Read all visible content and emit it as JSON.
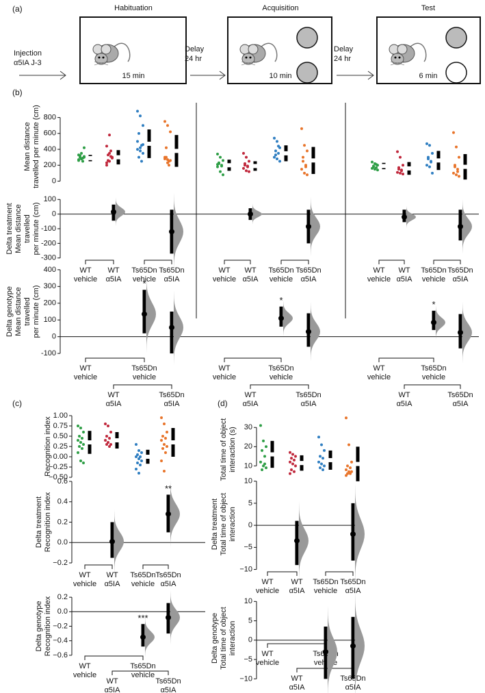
{
  "schematic": {
    "label": "(a)",
    "injection": [
      "Injection",
      "α5IA J-3"
    ],
    "phases": [
      {
        "title": "Habituation",
        "duration": "15 min"
      },
      {
        "title": "Acquisition",
        "duration": "10 min"
      },
      {
        "title": "Test",
        "duration": "6 min"
      }
    ],
    "delays": [
      [
        "Delay",
        "24 hr"
      ],
      [
        "Delay",
        "24 hr"
      ]
    ]
  },
  "chart_data": [
    {
      "type": "strip",
      "label": "(b)",
      "ylabel": [
        "Mean distance",
        "travelled per minute (cm)"
      ],
      "ylim": [
        -30,
        900
      ],
      "yticks": [
        0,
        200,
        400,
        600,
        800
      ],
      "groups": [
        {
          "series": [
            {
              "color": "#2e9e46",
              "values": [
                260,
                280,
                300,
                320,
                290,
                270,
                350,
                420,
                300,
                250,
                330,
                280,
                310
              ],
              "mean": 290,
              "sd": 40
            },
            {
              "color": "#c0283c",
              "values": [
                200,
                250,
                300,
                330,
                380,
                440,
                580,
                290,
                260,
                310,
                230,
                350
              ],
              "mean": 300,
              "sd": 90
            },
            {
              "color": "#2f7ec1",
              "values": [
                880,
                820,
                700,
                600,
                450,
                400,
                380,
                350,
                300,
                250,
                500,
                420,
                460
              ],
              "mean": 470,
              "sd": 180
            },
            {
              "color": "#e8742a",
              "values": [
                750,
                700,
                620,
                300,
                250,
                280,
                230,
                260,
                420,
                200,
                300,
                270
              ],
              "mean": 380,
              "sd": 200
            }
          ]
        },
        {
          "series": [
            {
              "color": "#2e9e46",
              "values": [
                340,
                300,
                260,
                220,
                200,
                180,
                120,
                80,
                230,
                190,
                210
              ],
              "mean": 200,
              "sd": 70
            },
            {
              "color": "#c0283c",
              "values": [
                350,
                300,
                250,
                200,
                180,
                160,
                130,
                120,
                220,
                190
              ],
              "mean": 190,
              "sd": 60
            },
            {
              "color": "#2f7ec1",
              "values": [
                540,
                500,
                420,
                380,
                350,
                300,
                280,
                250,
                330,
                440
              ],
              "mean": 350,
              "sd": 100
            },
            {
              "color": "#e8742a",
              "values": [
                660,
                450,
                380,
                300,
                200,
                150,
                100,
                80,
                250,
                180
              ],
              "mean": 260,
              "sd": 170
            }
          ]
        },
        {
          "series": [
            {
              "color": "#2e9e46",
              "values": [
                240,
                220,
                200,
                180,
                170,
                160,
                150,
                140,
                190,
                210
              ],
              "mean": 190,
              "sd": 40
            },
            {
              "color": "#c0283c",
              "values": [
                370,
                300,
                200,
                150,
                130,
                110,
                100,
                90,
                170,
                140
              ],
              "mean": 160,
              "sd": 80
            },
            {
              "color": "#2f7ec1",
              "values": [
                470,
                450,
                350,
                300,
                240,
                200,
                180,
                100,
                280,
                250
              ],
              "mean": 260,
              "sd": 120
            },
            {
              "color": "#e8742a",
              "values": [
                610,
                430,
                300,
                200,
                150,
                100,
                80,
                60,
                180,
                120
              ],
              "mean": 180,
              "sd": 160
            }
          ]
        }
      ]
    },
    {
      "type": "delta",
      "layout": "treatment",
      "ylabel": [
        "Delta treatment",
        "Mean distance",
        "travelled",
        "per minute (cm)"
      ],
      "ylim": [
        -320,
        120
      ],
      "yticks": [
        100,
        0,
        -100,
        -200,
        -300
      ],
      "groups": [
        {
          "categories": [
            [
              "WT",
              "vehicle"
            ],
            [
              "WT",
              "α5IA"
            ],
            [
              "Ts65Dn",
              "vehicle"
            ],
            [
              "Ts65Dn",
              "α5IA"
            ]
          ],
          "values": [
            null,
            15,
            null,
            -120
          ],
          "ci_low": [
            null,
            -45,
            null,
            -270
          ],
          "ci_high": [
            null,
            65,
            null,
            30
          ]
        },
        {
          "categories": [
            [
              "WT",
              "vehicle"
            ],
            [
              "WT",
              "α5IA"
            ],
            [
              "Ts65Dn",
              "vehicle"
            ],
            [
              "Ts65Dn",
              "α5IA"
            ]
          ],
          "values": [
            null,
            0,
            null,
            -85
          ],
          "ci_low": [
            null,
            -40,
            null,
            -200
          ],
          "ci_high": [
            null,
            40,
            null,
            30
          ]
        },
        {
          "categories": [
            [
              "WT",
              "vehicle"
            ],
            [
              "WT",
              "α5IA"
            ],
            [
              "Ts65Dn",
              "vehicle"
            ],
            [
              "Ts65Dn",
              "α5IA"
            ]
          ],
          "values": [
            null,
            -20,
            null,
            -85
          ],
          "ci_low": [
            null,
            -55,
            null,
            -180
          ],
          "ci_high": [
            null,
            30,
            null,
            30
          ]
        }
      ]
    },
    {
      "type": "delta",
      "layout": "genotype",
      "ylabel": [
        "Delta genotype",
        "Mean distance",
        "travelled",
        "per minute (cm)"
      ],
      "ylim": [
        -120,
        420
      ],
      "yticks": [
        400,
        300,
        200,
        100,
        0,
        -100
      ],
      "groups": [
        {
          "categories": [
            [
              "WT",
              "vehicle"
            ],
            [
              "WT",
              "α5IA"
            ],
            [
              "Ts65Dn",
              "vehicle"
            ],
            [
              "Ts65Dn",
              "α5IA"
            ]
          ],
          "values": [
            null,
            null,
            135,
            55
          ],
          "ci_low": [
            null,
            null,
            20,
            -100
          ],
          "ci_high": [
            null,
            null,
            280,
            150
          ],
          "stars": [
            null,
            null,
            "*",
            null
          ]
        },
        {
          "categories": [
            [
              "WT",
              "vehicle"
            ],
            [
              "WT",
              "α5IA"
            ],
            [
              "Ts65Dn",
              "vehicle"
            ],
            [
              "Ts65Dn",
              "α5IA"
            ]
          ],
          "values": [
            null,
            null,
            110,
            30
          ],
          "ci_low": [
            null,
            null,
            60,
            -60
          ],
          "ci_high": [
            null,
            null,
            180,
            140
          ],
          "stars": [
            null,
            null,
            "*",
            null
          ]
        },
        {
          "categories": [
            [
              "WT",
              "vehicle"
            ],
            [
              "WT",
              "α5IA"
            ],
            [
              "Ts65Dn",
              "vehicle"
            ],
            [
              "Ts65Dn",
              "α5IA"
            ]
          ],
          "values": [
            null,
            null,
            85,
            25
          ],
          "ci_low": [
            null,
            null,
            40,
            -70
          ],
          "ci_high": [
            null,
            null,
            155,
            135
          ],
          "stars": [
            null,
            null,
            "*",
            null
          ]
        }
      ]
    },
    {
      "type": "strip",
      "label": "(c)",
      "ylabel": [
        "Recognition index"
      ],
      "ylim": [
        -0.55,
        1.05
      ],
      "yticks": [
        {
          "value": 1,
          "label": "1.00"
        },
        {
          "value": 0.75,
          "label": "0.75"
        },
        {
          "value": 0.5,
          "label": "0.50"
        },
        {
          "value": 0.25,
          "label": "0.25"
        },
        {
          "value": 0,
          "label": "0.00"
        },
        {
          "value": -0.25,
          "label": "−0.25"
        },
        {
          "value": -0.5,
          "label": "−0.50"
        }
      ],
      "groups": [
        {
          "series": [
            {
              "color": "#2e9e46",
              "values": [
                0.75,
                0.7,
                0.6,
                0.5,
                0.45,
                0.4,
                0.35,
                0.3,
                0.25,
                0.2,
                0.1,
                -0.1,
                -0.15
              ],
              "mean": 0.35,
              "sd": 0.28
            },
            {
              "color": "#c0283c",
              "values": [
                0.8,
                0.75,
                0.6,
                0.5,
                0.45,
                0.4,
                0.35,
                0.3,
                0.3,
                0.25
              ],
              "mean": 0.4,
              "sd": 0.2
            },
            {
              "color": "#2f7ec1",
              "values": [
                0.3,
                0.15,
                0.1,
                0.05,
                0,
                0,
                -0.05,
                -0.1,
                -0.15,
                -0.2,
                -0.3,
                -0.4
              ],
              "mean": 0,
              "sd": 0.17
            },
            {
              "color": "#e8742a",
              "values": [
                0.95,
                0.8,
                0.6,
                0.5,
                0.45,
                0.4,
                0.3,
                0.25,
                0.2,
                0.1,
                -0.1,
                -0.35
              ],
              "mean": 0.35,
              "sd": 0.35
            }
          ]
        }
      ]
    },
    {
      "type": "delta",
      "layout": "treatment",
      "ylabel": [
        "Delta treatment",
        "Recognition index"
      ],
      "ylim": [
        -0.22,
        0.62
      ],
      "yticks": [
        0.6,
        0.4,
        0.2,
        {
          "value": 0,
          "label": "0.0"
        },
        {
          "value": -0.2,
          "label": "−0.2"
        }
      ],
      "groups": [
        {
          "categories": [
            [
              "WT",
              "vehicle"
            ],
            [
              "WT",
              "α5IA"
            ],
            [
              "Ts65Dn",
              "vehicle"
            ],
            [
              "Ts65Dn",
              "α5IA"
            ]
          ],
          "values": [
            null,
            0.01,
            null,
            0.28
          ],
          "ci_low": [
            null,
            -0.15,
            null,
            0.1
          ],
          "ci_high": [
            null,
            0.2,
            null,
            0.47
          ],
          "stars": [
            null,
            null,
            null,
            "**"
          ]
        }
      ]
    },
    {
      "type": "delta",
      "layout": "genotype",
      "ylabel": [
        "Delta genotype",
        "Recognition index"
      ],
      "ylim": [
        -0.62,
        0.22
      ],
      "yticks": [
        0.2,
        {
          "value": 0,
          "label": "0.0"
        },
        {
          "value": -0.2,
          "label": "−0.2"
        },
        {
          "value": -0.4,
          "label": "−0.4"
        },
        {
          "value": -0.6,
          "label": "−0.6"
        }
      ],
      "groups": [
        {
          "categories": [
            [
              "WT",
              "vehicle"
            ],
            [
              "WT",
              "α5IA"
            ],
            [
              "Ts65Dn",
              "vehicle"
            ],
            [
              "Ts65Dn",
              "α5IA"
            ]
          ],
          "values": [
            null,
            null,
            -0.35,
            -0.08
          ],
          "ci_low": [
            null,
            null,
            -0.48,
            -0.3
          ],
          "ci_high": [
            null,
            null,
            -0.17,
            0.12
          ],
          "stars": [
            null,
            null,
            "***",
            null
          ]
        }
      ]
    },
    {
      "type": "strip",
      "label": "(d)",
      "ylabel": [
        "Total time of object",
        "interaction (s)"
      ],
      "ylim": [
        3,
        34
      ],
      "yticks": [
        30,
        20,
        10
      ],
      "groups": [
        {
          "series": [
            {
              "color": "#2e9e46",
              "values": [
                31,
                23,
                20,
                18,
                15,
                12,
                10,
                9,
                8,
                11
              ],
              "mean": 16,
              "sd": 7
            },
            {
              "color": "#c0283c",
              "values": [
                17,
                16,
                15,
                14,
                13,
                12,
                11,
                10,
                8,
                7,
                6
              ],
              "mean": 11.5,
              "sd": 4
            },
            {
              "color": "#2f7ec1",
              "values": [
                25,
                21,
                18,
                15,
                14,
                12,
                11,
                10,
                9,
                8
              ],
              "mean": 13,
              "sd": 5
            },
            {
              "color": "#e8742a",
              "values": [
                35,
                21,
                12,
                10,
                9,
                8,
                7,
                7,
                6,
                6,
                5
              ],
              "mean": 11,
              "sd": 9
            }
          ]
        }
      ]
    },
    {
      "type": "delta",
      "layout": "treatment",
      "ylabel": [
        "Delta treatment",
        "Total time of object",
        "interaction"
      ],
      "ylim": [
        -11,
        11.5
      ],
      "yticks": [
        10,
        5,
        0,
        {
          "value": -5,
          "label": "−5"
        },
        {
          "value": -10,
          "label": "−10"
        }
      ],
      "groups": [
        {
          "categories": [
            [
              "WT",
              "vehicle"
            ],
            [
              "WT",
              "α5IA"
            ],
            [
              "Ts65Dn",
              "vehicle"
            ],
            [
              "Ts65Dn",
              "α5IA"
            ]
          ],
          "values": [
            null,
            -3.5,
            null,
            -2
          ],
          "ci_low": [
            null,
            -9,
            null,
            -8
          ],
          "ci_high": [
            null,
            1,
            null,
            5
          ]
        }
      ]
    },
    {
      "type": "delta",
      "layout": "genotype",
      "ylabel": [
        "Delta genotype",
        "Total time of object",
        "interaction"
      ],
      "ylim": [
        -11,
        12
      ],
      "yticks": [
        10,
        5,
        0,
        {
          "value": -5,
          "label": "−5"
        },
        {
          "value": -10,
          "label": "−10"
        }
      ],
      "groups": [
        {
          "categories": [
            [
              "WT",
              "vehicle"
            ],
            [
              "WT",
              "α5IA"
            ],
            [
              "Ts65Dn",
              "vehicle"
            ],
            [
              "Ts65Dn",
              "α5IA"
            ]
          ],
          "values": [
            null,
            null,
            -3,
            -1.5
          ],
          "ci_low": [
            null,
            null,
            -10,
            -10
          ],
          "ci_high": [
            null,
            null,
            3.5,
            6
          ]
        }
      ]
    }
  ]
}
